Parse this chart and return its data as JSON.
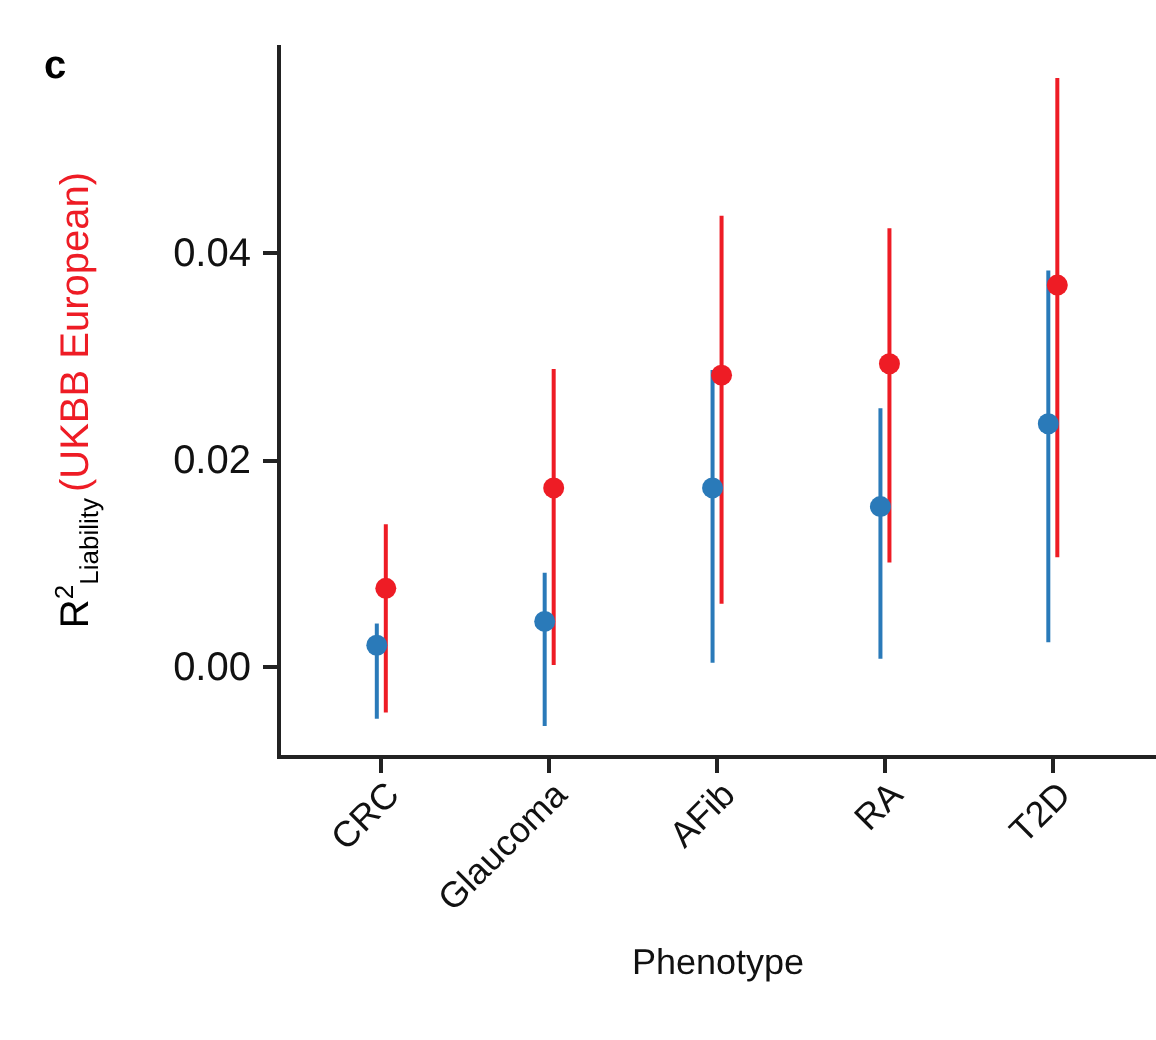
{
  "chart_data": {
    "type": "scatter",
    "annotations": [
      "c"
    ],
    "xlabel": "Phenotype",
    "ylabel": "R$^{2}$$_{Liability}$",
    "categories": [
      "CRC",
      "Glaucoma",
      "AFib",
      "RA",
      "T2D"
    ],
    "ylim": [
      -0.0086,
      0.06
    ],
    "yticks": [
      {
        "value": 0,
        "label": "0.00"
      },
      {
        "value": 0.02,
        "label": "0.02"
      },
      {
        "value": 0.04,
        "label": "0.04"
      }
    ],
    "marker": "circle",
    "legend": false,
    "grid": false,
    "series": [
      {
        "color": "#2a7ab9",
        "values": [
          0.0021,
          0.0044,
          0.0173,
          0.0155,
          0.0235
        ],
        "errors": [
          [
            -0.005,
            0.0042
          ],
          [
            -0.0057,
            0.0091
          ],
          [
            0.0004,
            0.0287
          ],
          [
            0.0008,
            0.025
          ],
          [
            0.0024,
            0.0383
          ]
        ]
      },
      {
        "name": "(UKBB European)",
        "color": "#ee1c25",
        "values": [
          0.0076,
          0.0173,
          0.0282,
          0.0293,
          0.0369
        ],
        "errors": [
          [
            -0.0044,
            0.0138
          ],
          [
            0.0002,
            0.0288
          ],
          [
            0.0061,
            0.0436
          ],
          [
            0.0101,
            0.0424
          ],
          [
            0.0106,
            0.0569
          ]
        ]
      }
    ]
  }
}
